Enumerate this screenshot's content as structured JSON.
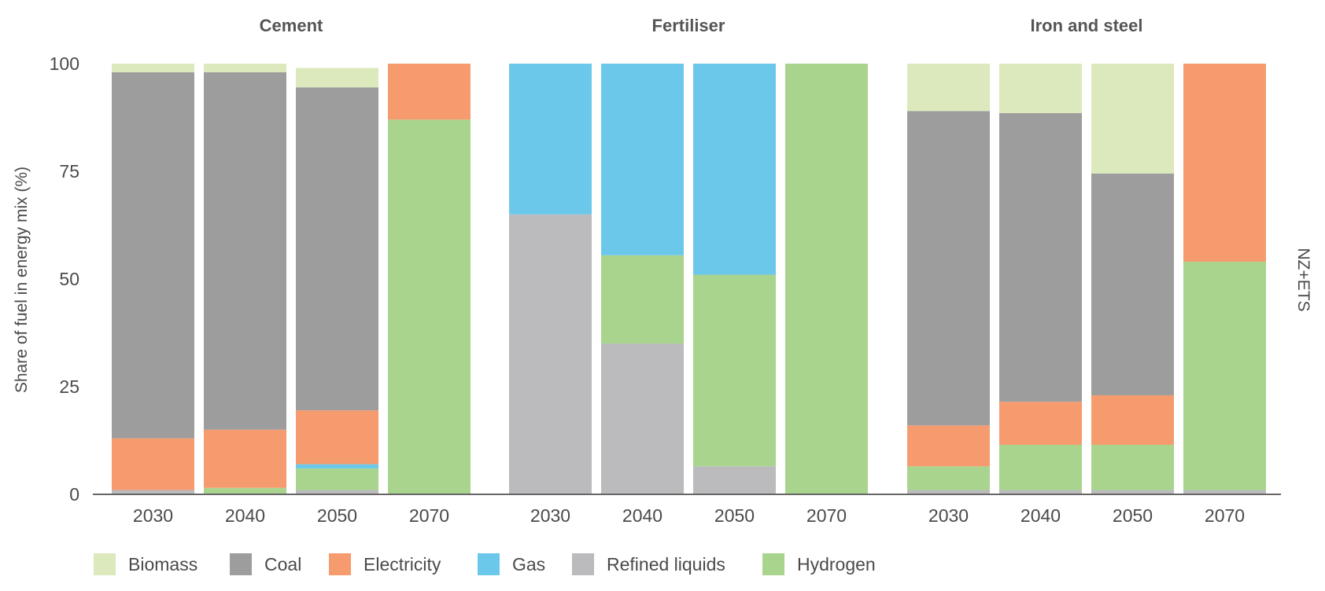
{
  "chart_data": {
    "type": "bar",
    "stacked": true,
    "ylabel": "Share of fuel in energy mix (%)",
    "side_label": "NZ+ETS",
    "ylim": [
      0,
      100
    ],
    "yticks": [
      0,
      25,
      50,
      75,
      100
    ],
    "grid": false,
    "legend_position": "bottom",
    "series": [
      {
        "name": "Biomass",
        "color": "#dbe9bc"
      },
      {
        "name": "Coal",
        "color": "#9d9d9d"
      },
      {
        "name": "Electricity",
        "color": "#f59b6e"
      },
      {
        "name": "Gas",
        "color": "#6cc8eb"
      },
      {
        "name": "Refined liquids",
        "color": "#bbbbbe"
      },
      {
        "name": "Hydrogen",
        "color": "#a9d48e"
      }
    ],
    "stack_order": [
      "Refined liquids",
      "Hydrogen",
      "Gas",
      "Electricity",
      "Coal",
      "Biomass"
    ],
    "panels": [
      {
        "title": "Cement",
        "categories": [
          "2030",
          "2040",
          "2050",
          "2070"
        ],
        "values": {
          "Refined liquids": [
            1,
            0,
            1,
            0
          ],
          "Hydrogen": [
            0,
            1.5,
            5,
            87
          ],
          "Gas": [
            0,
            0,
            1,
            0
          ],
          "Electricity": [
            12,
            13.5,
            12.5,
            13
          ],
          "Coal": [
            85,
            83,
            75,
            0
          ],
          "Biomass": [
            2,
            2,
            4.5,
            0
          ]
        }
      },
      {
        "title": "Fertiliser",
        "categories": [
          "2030",
          "2040",
          "2050",
          "2070"
        ],
        "values": {
          "Refined liquids": [
            65,
            35,
            6.5,
            0
          ],
          "Hydrogen": [
            0,
            20.5,
            44.5,
            100
          ],
          "Gas": [
            35,
            44.5,
            49,
            0
          ],
          "Electricity": [
            0,
            0,
            0,
            0
          ],
          "Coal": [
            0,
            0,
            0,
            0
          ],
          "Biomass": [
            0,
            0,
            0,
            0
          ]
        }
      },
      {
        "title": "Iron and steel",
        "categories": [
          "2030",
          "2040",
          "2050",
          "2070"
        ],
        "values": {
          "Refined liquids": [
            1,
            1,
            1,
            1
          ],
          "Hydrogen": [
            5.5,
            10.5,
            10.5,
            53
          ],
          "Gas": [
            0,
            0,
            0,
            0
          ],
          "Electricity": [
            9.5,
            10,
            11.5,
            46
          ],
          "Coal": [
            73,
            67,
            51.5,
            0
          ],
          "Biomass": [
            11,
            11.5,
            25.5,
            0
          ]
        }
      }
    ]
  }
}
